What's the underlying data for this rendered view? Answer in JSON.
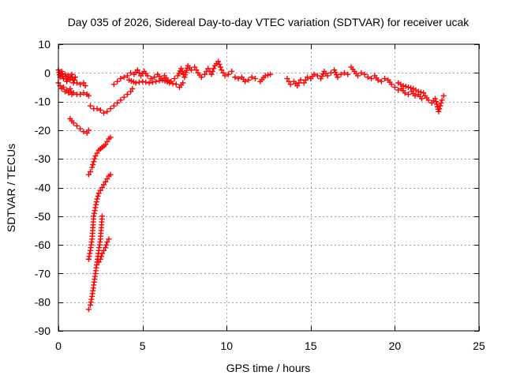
{
  "chart_data": {
    "type": "scatter",
    "title": "Day 035 of 2026, Sidereal Day-to-day VTEC variation (SDTVAR) for receiver ucak",
    "xlabel": "GPS time / hours",
    "ylabel": "SDTVAR / TECUs",
    "xlim": [
      0,
      25
    ],
    "ylim": [
      -90,
      10
    ],
    "xticks": [
      0,
      5,
      10,
      15,
      20,
      25
    ],
    "yticks": [
      10,
      0,
      -10,
      -20,
      -30,
      -40,
      -50,
      -60,
      -70,
      -80,
      -90
    ],
    "grid": true,
    "marker": "+",
    "series_color": "#ff0000",
    "series": [
      {
        "name": "SDTVAR",
        "segments": [
          [
            [
              0.0,
              1.0
            ],
            [
              0.1,
              -1.5
            ],
            [
              0.2,
              0.5
            ],
            [
              0.3,
              -2.0
            ],
            [
              0.4,
              -0.5
            ],
            [
              0.5,
              -3.0
            ],
            [
              0.6,
              -1.0
            ],
            [
              0.7,
              -2.5
            ],
            [
              0.8,
              -0.5
            ],
            [
              0.9,
              -3.5
            ],
            [
              1.0,
              -1.5
            ]
          ],
          [
            [
              0.0,
              -3.5
            ],
            [
              0.1,
              -4.5
            ],
            [
              0.2,
              -5.5
            ],
            [
              0.3,
              -5.0
            ],
            [
              0.4,
              -6.5
            ],
            [
              0.5,
              -6.0
            ],
            [
              0.6,
              -7.0
            ],
            [
              0.7,
              -5.5
            ],
            [
              0.8,
              -7.5
            ]
          ],
          [
            [
              0.9,
              -7.0
            ],
            [
              1.1,
              -7.5
            ],
            [
              1.3,
              -7.5
            ],
            [
              1.5,
              -7.0
            ],
            [
              1.7,
              -7.5
            ],
            [
              1.8,
              -8.0
            ]
          ],
          [
            [
              1.1,
              -3.5
            ],
            [
              1.3,
              -4.0
            ],
            [
              1.5,
              -3.5
            ],
            [
              1.6,
              -4.5
            ]
          ],
          [
            [
              0.7,
              -16.0
            ],
            [
              0.9,
              -17.5
            ],
            [
              1.1,
              -18.5
            ],
            [
              1.3,
              -19.5
            ],
            [
              1.5,
              -20.5
            ],
            [
              1.7,
              -21.0
            ],
            [
              1.8,
              -20.0
            ]
          ],
          [
            [
              1.9,
              -11.5
            ],
            [
              2.1,
              -12.5
            ],
            [
              2.3,
              -12.5
            ],
            [
              2.5,
              -13.0
            ],
            [
              2.7,
              -14.0
            ],
            [
              2.9,
              -13.5
            ],
            [
              3.1,
              -12.5
            ],
            [
              3.3,
              -11.5
            ],
            [
              3.5,
              -10.5
            ],
            [
              3.7,
              -9.5
            ],
            [
              3.9,
              -8.5
            ],
            [
              4.1,
              -7.5
            ],
            [
              4.3,
              -6.5
            ],
            [
              4.4,
              -5.5
            ]
          ],
          [
            [
              1.8,
              -35.5
            ],
            [
              1.9,
              -34.5
            ],
            [
              2.0,
              -33.0
            ],
            [
              2.1,
              -31.0
            ],
            [
              2.2,
              -29.0
            ],
            [
              2.3,
              -28.0
            ],
            [
              2.4,
              -27.0
            ],
            [
              2.5,
              -26.5
            ],
            [
              2.6,
              -26.0
            ],
            [
              2.7,
              -25.5
            ],
            [
              2.8,
              -25.0
            ],
            [
              2.9,
              -24.0
            ],
            [
              3.0,
              -23.0
            ],
            [
              3.1,
              -22.5
            ]
          ],
          [
            [
              1.8,
              -65.0
            ],
            [
              1.9,
              -62.0
            ],
            [
              2.0,
              -58.0
            ],
            [
              2.05,
              -54.0
            ],
            [
              2.1,
              -50.0
            ],
            [
              2.2,
              -47.0
            ],
            [
              2.3,
              -44.0
            ],
            [
              2.4,
              -42.0
            ],
            [
              2.5,
              -41.0
            ],
            [
              2.6,
              -40.0
            ],
            [
              2.7,
              -39.0
            ],
            [
              2.8,
              -38.0
            ],
            [
              2.9,
              -37.0
            ],
            [
              3.0,
              -36.0
            ],
            [
              3.1,
              -35.5
            ]
          ],
          [
            [
              1.8,
              -82.5
            ],
            [
              1.9,
              -81.0
            ],
            [
              2.0,
              -78.0
            ],
            [
              2.1,
              -74.0
            ],
            [
              2.2,
              -70.0
            ],
            [
              2.3,
              -66.0
            ],
            [
              2.4,
              -62.0
            ],
            [
              2.5,
              -58.0
            ],
            [
              2.55,
              -54.0
            ],
            [
              2.6,
              -50.0
            ]
          ],
          [
            [
              2.4,
              -66.0
            ],
            [
              2.5,
              -65.0
            ],
            [
              2.6,
              -63.0
            ],
            [
              2.7,
              -62.0
            ],
            [
              2.8,
              -61.0
            ],
            [
              2.9,
              -59.0
            ],
            [
              3.0,
              -58.0
            ]
          ],
          [
            [
              3.3,
              -4.0
            ],
            [
              3.5,
              -3.0
            ],
            [
              3.7,
              -2.0
            ],
            [
              3.9,
              -1.5
            ],
            [
              4.1,
              -1.0
            ],
            [
              4.3,
              0.0
            ],
            [
              4.5,
              -0.5
            ],
            [
              4.7,
              1.0
            ],
            [
              4.9,
              -1.0
            ],
            [
              5.1,
              0.5
            ],
            [
              5.3,
              -1.0
            ],
            [
              5.5,
              -2.0
            ],
            [
              5.7,
              -1.5
            ],
            [
              5.9,
              -0.5
            ],
            [
              6.1,
              -2.0
            ],
            [
              6.3,
              -1.0
            ],
            [
              6.5,
              -2.5
            ],
            [
              6.7,
              -3.0
            ],
            [
              6.9,
              -2.0
            ],
            [
              7.1,
              -1.0
            ],
            [
              7.3,
              1.5
            ],
            [
              7.5,
              -1.5
            ],
            [
              7.7,
              2.5
            ],
            [
              7.9,
              1.0
            ],
            [
              8.1,
              2.0
            ],
            [
              8.3,
              0.0
            ],
            [
              8.5,
              -1.5
            ],
            [
              8.7,
              -0.5
            ],
            [
              8.9,
              1.5
            ],
            [
              9.1,
              -0.5
            ],
            [
              9.3,
              2.5
            ],
            [
              9.5,
              4.0
            ],
            [
              9.7,
              1.0
            ],
            [
              9.9,
              -1.0
            ],
            [
              10.1,
              -0.5
            ],
            [
              10.3,
              0.5
            ]
          ],
          [
            [
              4.2,
              -2.5
            ],
            [
              4.6,
              -3.5
            ],
            [
              5.0,
              -3.0
            ],
            [
              5.4,
              -3.5
            ],
            [
              5.8,
              -3.0
            ],
            [
              6.2,
              -2.5
            ],
            [
              6.6,
              -3.5
            ],
            [
              7.0,
              -4.0
            ],
            [
              7.2,
              -5.0
            ],
            [
              7.4,
              -3.5
            ]
          ],
          [
            [
              10.5,
              -1.5
            ],
            [
              10.7,
              -2.0
            ],
            [
              10.9,
              -1.5
            ],
            [
              11.1,
              -3.0
            ],
            [
              11.3,
              -2.5
            ],
            [
              11.5,
              -1.5
            ],
            [
              11.7,
              -2.0
            ]
          ],
          [
            [
              12.0,
              -3.0
            ],
            [
              12.3,
              -1.0
            ],
            [
              12.6,
              -0.5
            ]
          ],
          [
            [
              13.6,
              -2.0
            ],
            [
              13.8,
              -4.0
            ],
            [
              14.0,
              -3.0
            ],
            [
              14.2,
              -4.5
            ],
            [
              14.4,
              -2.5
            ],
            [
              14.6,
              -3.5
            ],
            [
              14.8,
              -1.5
            ],
            [
              15.0,
              -2.0
            ],
            [
              15.2,
              -0.5
            ],
            [
              15.4,
              -1.0
            ],
            [
              15.6,
              -2.0
            ],
            [
              15.8,
              0.5
            ],
            [
              16.0,
              -1.0
            ],
            [
              16.2,
              0.0
            ],
            [
              16.4,
              1.0
            ],
            [
              16.6,
              -1.5
            ],
            [
              16.8,
              -0.5
            ],
            [
              17.0,
              0.0
            ],
            [
              17.2,
              -0.5
            ]
          ],
          [
            [
              17.4,
              2.0
            ],
            [
              17.6,
              0.5
            ],
            [
              17.8,
              -1.0
            ],
            [
              18.0,
              0.0
            ],
            [
              18.2,
              -0.5
            ],
            [
              18.4,
              -1.5
            ],
            [
              18.6,
              -2.0
            ],
            [
              18.8,
              -1.0
            ],
            [
              19.0,
              -2.5
            ],
            [
              19.2,
              -3.0
            ],
            [
              19.4,
              -2.0
            ]
          ],
          [
            [
              19.6,
              -2.5
            ],
            [
              19.8,
              -4.0
            ],
            [
              20.0,
              -5.0
            ],
            [
              20.2,
              -6.0
            ],
            [
              20.4,
              -5.5
            ],
            [
              20.6,
              -7.0
            ],
            [
              20.8,
              -7.5
            ],
            [
              21.0,
              -6.5
            ],
            [
              21.2,
              -8.0
            ],
            [
              21.4,
              -7.5
            ],
            [
              21.6,
              -9.0
            ],
            [
              21.8,
              -8.0
            ],
            [
              22.0,
              -9.5
            ],
            [
              22.2,
              -10.5
            ],
            [
              22.4,
              -9.0
            ],
            [
              22.5,
              -11.0
            ],
            [
              22.6,
              -13.5
            ],
            [
              22.7,
              -11.5
            ],
            [
              22.8,
              -9.5
            ],
            [
              22.9,
              -8.0
            ]
          ],
          [
            [
              20.2,
              -3.5
            ],
            [
              20.5,
              -4.5
            ],
            [
              20.8,
              -5.0
            ],
            [
              21.1,
              -5.5
            ],
            [
              21.4,
              -6.5
            ],
            [
              21.7,
              -7.0
            ]
          ]
        ]
      }
    ]
  }
}
